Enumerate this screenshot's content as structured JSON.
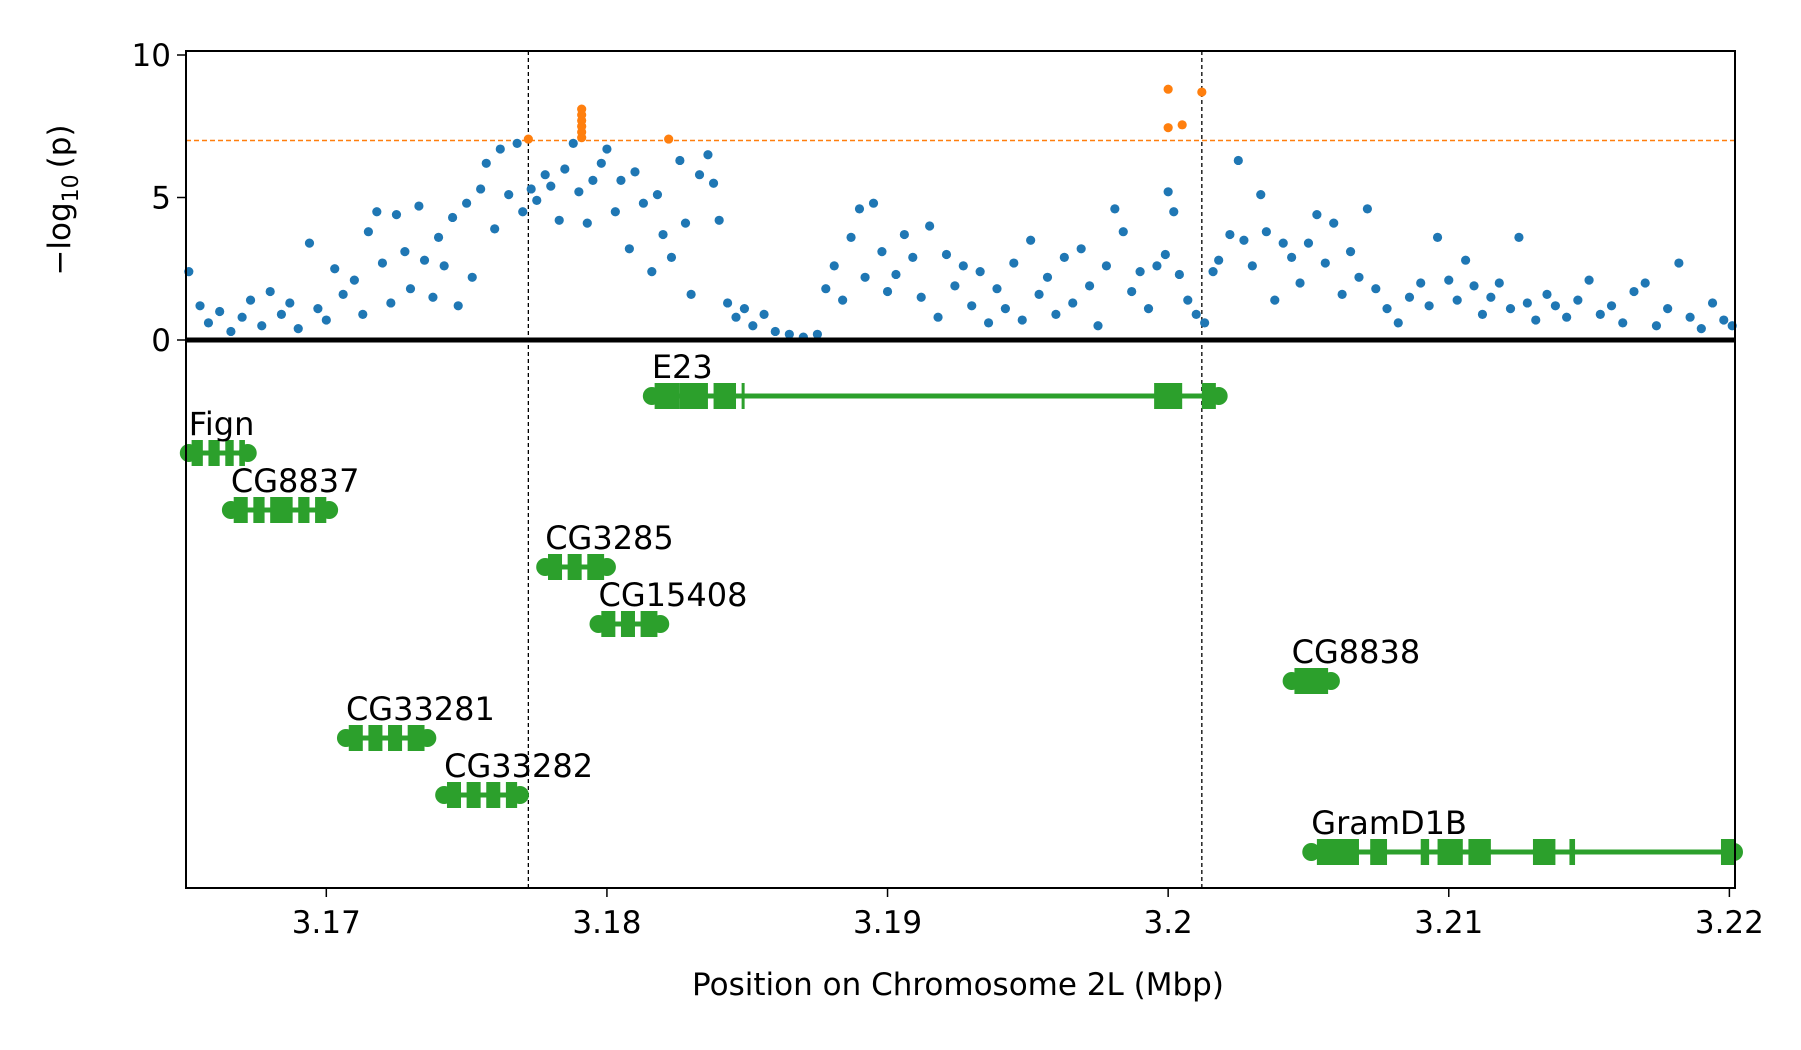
{
  "chart_data": {
    "type": "scatter",
    "title": "",
    "xlabel": "Position on Chromosome 2L (Mbp)",
    "ylabel_prefix": "−log",
    "ylabel_sub": "10",
    "ylabel_suffix": "(p)",
    "xlim": [
      3.165,
      3.2202
    ],
    "ylim": [
      0,
      10
    ],
    "xticks": [
      {
        "value": 3.17,
        "label": "3.17"
      },
      {
        "value": 3.18,
        "label": "3.18"
      },
      {
        "value": 3.19,
        "label": "3.19"
      },
      {
        "value": 3.2,
        "label": "3.2"
      },
      {
        "value": 3.21,
        "label": "3.21"
      },
      {
        "value": 3.22,
        "label": "3.22"
      }
    ],
    "yticks": [
      {
        "value": 0,
        "label": "0"
      },
      {
        "value": 5,
        "label": "5"
      },
      {
        "value": 10,
        "label": "10"
      }
    ],
    "significance_threshold": 7,
    "region_bounds": [
      3.1772,
      3.2012
    ],
    "colors": {
      "normal": "#1f77b4",
      "significant": "#ff7f0e",
      "gene": "#2ca02c",
      "threshold": "#ff7f0e",
      "baseline": "#000000"
    },
    "series": [
      {
        "name": "",
        "color": "#1f77b4",
        "points": [
          [
            3.1651,
            2.4
          ],
          [
            3.1655,
            1.2
          ],
          [
            3.1658,
            0.6
          ],
          [
            3.1662,
            1.0
          ],
          [
            3.1666,
            0.3
          ],
          [
            3.167,
            0.8
          ],
          [
            3.1673,
            1.4
          ],
          [
            3.1677,
            0.5
          ],
          [
            3.168,
            1.7
          ],
          [
            3.1684,
            0.9
          ],
          [
            3.1687,
            1.3
          ],
          [
            3.169,
            0.4
          ],
          [
            3.1694,
            3.4
          ],
          [
            3.1697,
            1.1
          ],
          [
            3.17,
            0.7
          ],
          [
            3.1703,
            2.5
          ],
          [
            3.1706,
            1.6
          ],
          [
            3.171,
            2.1
          ],
          [
            3.1713,
            0.9
          ],
          [
            3.1715,
            3.8
          ],
          [
            3.1718,
            4.5
          ],
          [
            3.172,
            2.7
          ],
          [
            3.1723,
            1.3
          ],
          [
            3.1725,
            4.4
          ],
          [
            3.1728,
            3.1
          ],
          [
            3.173,
            1.8
          ],
          [
            3.1733,
            4.7
          ],
          [
            3.1735,
            2.8
          ],
          [
            3.1738,
            1.5
          ],
          [
            3.174,
            3.6
          ],
          [
            3.1742,
            2.6
          ],
          [
            3.1745,
            4.3
          ],
          [
            3.1747,
            1.2
          ],
          [
            3.175,
            4.8
          ],
          [
            3.1752,
            2.2
          ],
          [
            3.1755,
            5.3
          ],
          [
            3.1757,
            6.2
          ],
          [
            3.176,
            3.9
          ],
          [
            3.1762,
            6.7
          ],
          [
            3.1765,
            5.1
          ],
          [
            3.1768,
            6.9
          ],
          [
            3.177,
            4.5
          ],
          [
            3.1773,
            5.3
          ],
          [
            3.1775,
            4.9
          ],
          [
            3.1778,
            5.8
          ],
          [
            3.178,
            5.4
          ],
          [
            3.1783,
            4.2
          ],
          [
            3.1785,
            6.0
          ],
          [
            3.1788,
            6.9
          ],
          [
            3.179,
            5.2
          ],
          [
            3.1793,
            4.1
          ],
          [
            3.1795,
            5.6
          ],
          [
            3.1798,
            6.2
          ],
          [
            3.18,
            6.7
          ],
          [
            3.1803,
            4.5
          ],
          [
            3.1805,
            5.6
          ],
          [
            3.1808,
            3.2
          ],
          [
            3.181,
            5.9
          ],
          [
            3.1813,
            4.8
          ],
          [
            3.1816,
            2.4
          ],
          [
            3.1818,
            5.1
          ],
          [
            3.182,
            3.7
          ],
          [
            3.1823,
            2.9
          ],
          [
            3.1826,
            6.3
          ],
          [
            3.1828,
            4.1
          ],
          [
            3.183,
            1.6
          ],
          [
            3.1833,
            5.8
          ],
          [
            3.1836,
            6.5
          ],
          [
            3.1838,
            5.5
          ],
          [
            3.184,
            4.2
          ],
          [
            3.1843,
            1.3
          ],
          [
            3.1846,
            0.8
          ],
          [
            3.1849,
            1.1
          ],
          [
            3.1852,
            0.5
          ],
          [
            3.1856,
            0.9
          ],
          [
            3.186,
            0.3
          ],
          [
            3.1865,
            0.2
          ],
          [
            3.187,
            0.1
          ],
          [
            3.1875,
            0.2
          ],
          [
            3.1878,
            1.8
          ],
          [
            3.1881,
            2.6
          ],
          [
            3.1884,
            1.4
          ],
          [
            3.1887,
            3.6
          ],
          [
            3.189,
            4.6
          ],
          [
            3.1892,
            2.2
          ],
          [
            3.1895,
            4.8
          ],
          [
            3.1898,
            3.1
          ],
          [
            3.19,
            1.7
          ],
          [
            3.1903,
            2.3
          ],
          [
            3.1906,
            3.7
          ],
          [
            3.1909,
            2.9
          ],
          [
            3.1912,
            1.5
          ],
          [
            3.1915,
            4.0
          ],
          [
            3.1918,
            0.8
          ],
          [
            3.1921,
            3.0
          ],
          [
            3.1924,
            1.9
          ],
          [
            3.1927,
            2.6
          ],
          [
            3.193,
            1.2
          ],
          [
            3.1933,
            2.4
          ],
          [
            3.1936,
            0.6
          ],
          [
            3.1939,
            1.8
          ],
          [
            3.1942,
            1.1
          ],
          [
            3.1945,
            2.7
          ],
          [
            3.1948,
            0.7
          ],
          [
            3.1951,
            3.5
          ],
          [
            3.1954,
            1.6
          ],
          [
            3.1957,
            2.2
          ],
          [
            3.196,
            0.9
          ],
          [
            3.1963,
            2.9
          ],
          [
            3.1966,
            1.3
          ],
          [
            3.1969,
            3.2
          ],
          [
            3.1972,
            1.9
          ],
          [
            3.1975,
            0.5
          ],
          [
            3.1978,
            2.6
          ],
          [
            3.1981,
            4.6
          ],
          [
            3.1984,
            3.8
          ],
          [
            3.1987,
            1.7
          ],
          [
            3.199,
            2.4
          ],
          [
            3.1993,
            1.1
          ],
          [
            3.1996,
            2.6
          ],
          [
            3.1999,
            3.0
          ],
          [
            3.2,
            5.2
          ],
          [
            3.2002,
            4.5
          ],
          [
            3.2004,
            2.3
          ],
          [
            3.2007,
            1.4
          ],
          [
            3.201,
            0.9
          ],
          [
            3.2013,
            0.6
          ],
          [
            3.2016,
            2.4
          ],
          [
            3.2018,
            2.8
          ],
          [
            3.2022,
            3.7
          ],
          [
            3.2025,
            6.3
          ],
          [
            3.2027,
            3.5
          ],
          [
            3.203,
            2.6
          ],
          [
            3.2033,
            5.1
          ],
          [
            3.2035,
            3.8
          ],
          [
            3.2038,
            1.4
          ],
          [
            3.2041,
            3.4
          ],
          [
            3.2044,
            2.9
          ],
          [
            3.2047,
            2.0
          ],
          [
            3.205,
            3.4
          ],
          [
            3.2053,
            4.4
          ],
          [
            3.2056,
            2.7
          ],
          [
            3.2059,
            4.1
          ],
          [
            3.2062,
            1.6
          ],
          [
            3.2065,
            3.1
          ],
          [
            3.2068,
            2.2
          ],
          [
            3.2071,
            4.6
          ],
          [
            3.2074,
            1.8
          ],
          [
            3.2078,
            1.1
          ],
          [
            3.2082,
            0.6
          ],
          [
            3.2086,
            1.5
          ],
          [
            3.209,
            2.0
          ],
          [
            3.2093,
            1.2
          ],
          [
            3.2096,
            3.6
          ],
          [
            3.21,
            2.1
          ],
          [
            3.2103,
            1.4
          ],
          [
            3.2106,
            2.8
          ],
          [
            3.2109,
            1.9
          ],
          [
            3.2112,
            0.9
          ],
          [
            3.2115,
            1.5
          ],
          [
            3.2118,
            2.0
          ],
          [
            3.2122,
            1.1
          ],
          [
            3.2125,
            3.6
          ],
          [
            3.2128,
            1.3
          ],
          [
            3.2131,
            0.7
          ],
          [
            3.2135,
            1.6
          ],
          [
            3.2138,
            1.2
          ],
          [
            3.2142,
            0.8
          ],
          [
            3.2146,
            1.4
          ],
          [
            3.215,
            2.1
          ],
          [
            3.2154,
            0.9
          ],
          [
            3.2158,
            1.2
          ],
          [
            3.2162,
            0.6
          ],
          [
            3.2166,
            1.7
          ],
          [
            3.217,
            2.0
          ],
          [
            3.2174,
            0.5
          ],
          [
            3.2178,
            1.1
          ],
          [
            3.2182,
            2.7
          ],
          [
            3.2186,
            0.8
          ],
          [
            3.219,
            0.4
          ],
          [
            3.2194,
            1.3
          ],
          [
            3.2198,
            0.7
          ],
          [
            3.2201,
            0.5
          ]
        ]
      },
      {
        "name": "",
        "color": "#ff7f0e",
        "points": [
          [
            3.1772,
            7.05
          ],
          [
            3.1791,
            7.1
          ],
          [
            3.1791,
            7.3
          ],
          [
            3.1791,
            7.5
          ],
          [
            3.1791,
            7.7
          ],
          [
            3.1791,
            7.9
          ],
          [
            3.1791,
            8.1
          ],
          [
            3.1822,
            7.05
          ],
          [
            3.2,
            8.8
          ],
          [
            3.2,
            7.45
          ],
          [
            3.2005,
            7.55
          ],
          [
            3.2012,
            8.7
          ]
        ]
      }
    ],
    "genes": [
      {
        "name": "E23",
        "label": "E23",
        "start": 3.1816,
        "end": 3.2018,
        "exons": [
          [
            3.1817,
            3.1826
          ],
          [
            3.1826,
            3.1836
          ],
          [
            3.1838,
            3.1846
          ],
          [
            3.1848,
            3.1849
          ],
          [
            3.1995,
            3.2005
          ],
          [
            3.2012,
            3.2017
          ]
        ]
      },
      {
        "name": "Fign",
        "label": "Fign",
        "start": 3.1651,
        "end": 3.1672,
        "exons": [
          [
            3.1652,
            3.1656
          ],
          [
            3.1658,
            3.1662
          ],
          [
            3.1664,
            3.1667
          ],
          [
            3.1669,
            3.1671
          ]
        ]
      },
      {
        "name": "CG8837",
        "label": "CG8837",
        "start": 3.1666,
        "end": 3.1701,
        "exons": [
          [
            3.1667,
            3.1672
          ],
          [
            3.1674,
            3.1678
          ],
          [
            3.168,
            3.1688
          ],
          [
            3.169,
            3.1694
          ],
          [
            3.1696,
            3.17
          ]
        ]
      },
      {
        "name": "CG3285",
        "label": "CG3285",
        "start": 3.1778,
        "end": 3.18,
        "exons": [
          [
            3.1779,
            3.1784
          ],
          [
            3.1786,
            3.1791
          ],
          [
            3.1793,
            3.1799
          ]
        ]
      },
      {
        "name": "CG15408",
        "label": "CG15408",
        "start": 3.1797,
        "end": 3.1819,
        "exons": [
          [
            3.1798,
            3.1803
          ],
          [
            3.1805,
            3.181
          ],
          [
            3.1812,
            3.1818
          ]
        ]
      },
      {
        "name": "CG8838",
        "label": "CG8838",
        "start": 3.2044,
        "end": 3.2058,
        "exons": [
          [
            3.2045,
            3.2057
          ]
        ]
      },
      {
        "name": "CG33281",
        "label": "CG33281",
        "start": 3.1707,
        "end": 3.1736,
        "exons": [
          [
            3.1708,
            3.1713
          ],
          [
            3.1715,
            3.172
          ],
          [
            3.1722,
            3.1727
          ],
          [
            3.1729,
            3.1735
          ]
        ]
      },
      {
        "name": "CG33282",
        "label": "CG33282",
        "start": 3.1742,
        "end": 3.1769,
        "exons": [
          [
            3.1743,
            3.1748
          ],
          [
            3.175,
            3.1755
          ],
          [
            3.1757,
            3.1762
          ],
          [
            3.1764,
            3.1768
          ]
        ]
      },
      {
        "name": "GramD1B",
        "label": "GramD1B",
        "start": 3.2051,
        "end": 3.2202,
        "exons": [
          [
            3.2053,
            3.2068
          ],
          [
            3.2072,
            3.2078
          ],
          [
            3.209,
            3.2093
          ],
          [
            3.2096,
            3.2105
          ],
          [
            3.2107,
            3.2115
          ],
          [
            3.213,
            3.2138
          ],
          [
            3.2143,
            3.2145
          ],
          [
            3.2197,
            3.2202
          ]
        ]
      }
    ]
  }
}
